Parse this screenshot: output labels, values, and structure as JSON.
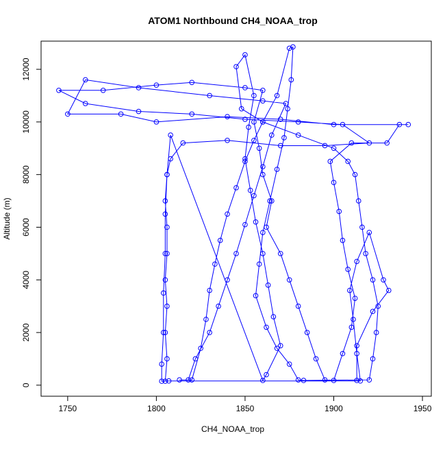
{
  "chart_data": {
    "type": "line",
    "marker": "open-circle",
    "title": "ATOM1 Northbound CH4_NOAA_trop",
    "x_label": "CH4_NOAA_trop",
    "y_label": "Altitude (m)",
    "color": "#0000ff",
    "xlim": [
      1735,
      1955
    ],
    "ylim": [
      -420,
      13070
    ],
    "xticks": [
      1750,
      1800,
      1850,
      1900,
      1950
    ],
    "yticks": [
      0,
      2000,
      4000,
      6000,
      8000,
      10000,
      12000
    ],
    "x": [
      1805,
      1806,
      1805,
      1806,
      1805,
      1806,
      1806,
      1805,
      1806,
      1808,
      1815,
      1840,
      1870,
      1895,
      1920,
      1905,
      1880,
      1850,
      1820,
      1790,
      1760,
      1745,
      1770,
      1800,
      1820,
      1850,
      1860,
      1855,
      1858,
      1860,
      1865,
      1862,
      1870,
      1875,
      1880,
      1885,
      1890,
      1895,
      1900,
      1905,
      1910,
      1912,
      1908,
      1905,
      1903,
      1900,
      1898,
      1910,
      1930,
      1937,
      1942,
      1900,
      1870,
      1840,
      1800,
      1780,
      1750,
      1760,
      1790,
      1830,
      1860,
      1873,
      1865,
      1860,
      1855,
      1850,
      1845,
      1840,
      1835,
      1830,
      1822,
      1818,
      1813,
      1820,
      1825,
      1828,
      1830,
      1833,
      1836,
      1840,
      1845,
      1850,
      1855,
      1860,
      1868,
      1875,
      1877,
      1876,
      1874,
      1872,
      1868,
      1864,
      1860,
      1858,
      1856,
      1862,
      1868,
      1875,
      1880,
      1883,
      1920,
      1922,
      1924,
      1925,
      1922,
      1918,
      1916,
      1914,
      1912,
      1908,
      1900,
      1880,
      1860,
      1848,
      1845,
      1850,
      1855,
      1852,
      1850,
      1853,
      1856,
      1860,
      1863,
      1866,
      1870,
      1862,
      1860,
      1808,
      1806,
      1805,
      1805,
      1804,
      1804,
      1803,
      1803,
      1807,
      1915,
      1913,
      1911,
      1909,
      1913,
      1920,
      1928,
      1931,
      1922,
      1913,
      1913
    ],
    "values": [
      150,
      1000,
      2000,
      3000,
      4000,
      5000,
      6000,
      7000,
      8000,
      8600,
      9200,
      9300,
      9100,
      9100,
      9200,
      9900,
      10000,
      10100,
      10300,
      10400,
      10700,
      11200,
      11200,
      11400,
      11500,
      11300,
      11200,
      10000,
      9000,
      8000,
      7000,
      6000,
      5000,
      4000,
      3000,
      2000,
      1000,
      200,
      180,
      1200,
      2200,
      3300,
      4400,
      5500,
      6600,
      7700,
      8500,
      9200,
      9200,
      9900,
      9900,
      9900,
      10100,
      10200,
      10000,
      10300,
      10300,
      11600,
      11300,
      11000,
      10800,
      10700,
      9500,
      8300,
      7200,
      6100,
      5000,
      4000,
      3000,
      2000,
      1000,
      200,
      200,
      200,
      1400,
      2500,
      3600,
      4600,
      5500,
      6500,
      7500,
      8500,
      9300,
      10000,
      11000,
      12800,
      12850,
      11600,
      10500,
      9400,
      8200,
      7000,
      5800,
      4600,
      3400,
      2200,
      1400,
      800,
      200,
      180,
      200,
      1000,
      2000,
      3000,
      4000,
      5000,
      6000,
      7000,
      8000,
      8500,
      9000,
      9500,
      10000,
      10500,
      12100,
      12550,
      11000,
      9800,
      8600,
      7400,
      6200,
      5000,
      3800,
      2600,
      1500,
      400,
      180,
      9500,
      8000,
      6500,
      5000,
      3500,
      2000,
      800,
      150,
      160,
      160,
      1200,
      2500,
      3600,
      4700,
      5800,
      4000,
      3600,
      2800,
      1500,
      180
    ]
  }
}
